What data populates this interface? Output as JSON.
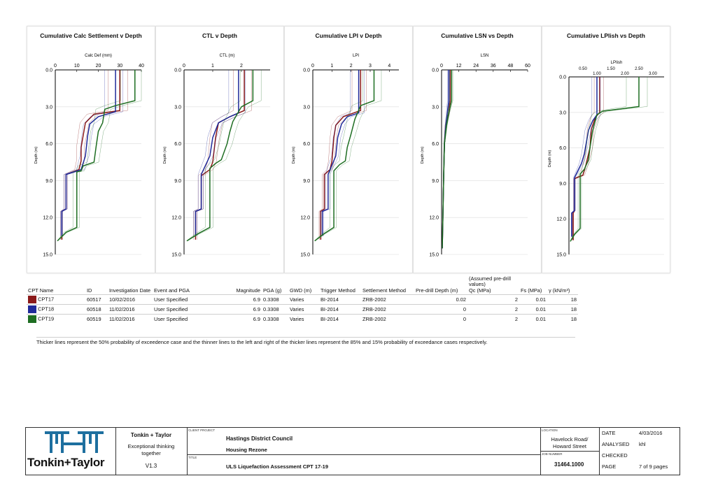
{
  "charts": [
    {
      "title": "Cumulative Calc Settlement v Depth",
      "xlabel": "Calc Def (mm)",
      "xticks": [
        "0",
        "10",
        "20",
        "30",
        "40"
      ],
      "yticks": [
        "0.0",
        "3.0",
        "6.0",
        "9.0",
        "12.0",
        "15.0"
      ],
      "ylabel": "Depth (m)"
    },
    {
      "title": "CTL v Depth",
      "xlabel": "CTL (m)",
      "xticks": [
        "0",
        "1",
        "2"
      ],
      "yticks": [
        "0.0",
        "3.0",
        "6.0",
        "9.0",
        "12.0",
        "15.0"
      ],
      "ylabel": "Depth (m)"
    },
    {
      "title": "Cumulative LPI v Depth",
      "xlabel": "LPI",
      "xticks": [
        "0",
        "1",
        "2",
        "3",
        "4"
      ],
      "yticks": [
        "0.0",
        "3.0",
        "6.0",
        "9.0",
        "12.0",
        "15.0"
      ],
      "ylabel": "Depth (m)"
    },
    {
      "title": "Cumulative LSN vs Depth",
      "xlabel": "LSN",
      "xticks": [
        "0",
        "12",
        "24",
        "36",
        "48",
        "60"
      ],
      "yticks": [
        "0.0",
        "3.0",
        "6.0",
        "9.0",
        "12.0",
        "15.0"
      ],
      "ylabel": "Depth (m)"
    },
    {
      "title": "Cumulative LPIish vs Depth",
      "xlabel": "LPIish",
      "xticks": [
        "0.50",
        "1.50",
        "2.50"
      ],
      "xticks2": [
        "1.00",
        "2.00",
        "3.00"
      ],
      "yticks": [
        "0.0",
        "3.0",
        "6.0",
        "9.0",
        "12.0",
        "15.0"
      ],
      "ylabel": "Depth (m)"
    }
  ],
  "chart_data": [
    {
      "type": "line",
      "title": "Cumulative Calc Settlement v Depth",
      "xlabel": "Calc Def (mm)",
      "ylabel": "Depth (m)",
      "xlim": [
        0,
        40
      ],
      "ylim": [
        0,
        15
      ],
      "series": [
        {
          "name": "CPT17",
          "color": "#8b1a1a",
          "points": [
            [
              30,
              0
            ],
            [
              30,
              3.3
            ],
            [
              18,
              3.6
            ],
            [
              14,
              4.3
            ],
            [
              13,
              5.3
            ],
            [
              12,
              6.3
            ],
            [
              12,
              7.4
            ],
            [
              11,
              8.1
            ],
            [
              5,
              8.5
            ],
            [
              5,
              11.3
            ],
            [
              3,
              11.5
            ],
            [
              3,
              13.8
            ]
          ]
        },
        {
          "name": "CPT18",
          "color": "#1f2a9a",
          "points": [
            [
              28,
              0
            ],
            [
              28,
              3.4
            ],
            [
              20,
              3.8
            ],
            [
              16,
              4.4
            ],
            [
              15,
              5.4
            ],
            [
              14,
              7.0
            ],
            [
              12,
              8.1
            ],
            [
              5,
              8.5
            ],
            [
              5,
              11.3
            ],
            [
              3,
              11.5
            ],
            [
              3,
              13.5
            ]
          ]
        },
        {
          "name": "CPT19",
          "color": "#1e6e22",
          "points": [
            [
              37,
              0
            ],
            [
              37,
              2.5
            ],
            [
              28,
              2.9
            ],
            [
              23,
              3.2
            ],
            [
              22,
              4.3
            ],
            [
              20,
              5.0
            ],
            [
              19,
              6.2
            ],
            [
              18,
              7.5
            ],
            [
              13,
              7.8
            ],
            [
              12,
              8.2
            ],
            [
              10,
              8.3
            ],
            [
              10,
              12.8
            ],
            [
              5,
              13.2
            ],
            [
              1,
              13.9
            ]
          ]
        }
      ]
    },
    {
      "type": "line",
      "title": "CTL v Depth",
      "xlabel": "CTL (m)",
      "ylabel": "Depth (m)",
      "xlim": [
        0,
        3
      ],
      "ylim": [
        0,
        15
      ],
      "series": [
        {
          "name": "CPT17",
          "color": "#8b1a1a",
          "points": [
            [
              2.1,
              0
            ],
            [
              2.1,
              3.3
            ],
            [
              1.6,
              3.8
            ],
            [
              1.2,
              4.3
            ],
            [
              1.1,
              5.5
            ],
            [
              1.0,
              7.5
            ],
            [
              0.9,
              8.1
            ],
            [
              0.6,
              8.6
            ],
            [
              0.6,
              11.3
            ],
            [
              0.4,
              11.5
            ],
            [
              0.4,
              13.8
            ]
          ]
        },
        {
          "name": "CPT18",
          "color": "#1f2a9a",
          "points": [
            [
              1.9,
              0
            ],
            [
              1.9,
              3.5
            ],
            [
              1.6,
              3.8
            ],
            [
              1.2,
              4.3
            ],
            [
              1.0,
              5.5
            ],
            [
              0.9,
              7.0
            ],
            [
              0.6,
              8.5
            ],
            [
              0.6,
              11.3
            ],
            [
              0.4,
              11.5
            ],
            [
              0.4,
              13.5
            ]
          ]
        },
        {
          "name": "CPT19",
          "color": "#1e6e22",
          "points": [
            [
              2.4,
              0
            ],
            [
              2.4,
              2.5
            ],
            [
              2.0,
              3.0
            ],
            [
              1.7,
              4.2
            ],
            [
              1.6,
              5.0
            ],
            [
              1.5,
              6.0
            ],
            [
              1.3,
              7.3
            ],
            [
              1.1,
              7.6
            ],
            [
              0.9,
              8.0
            ],
            [
              0.9,
              12.8
            ],
            [
              0.5,
              13.3
            ],
            [
              0.1,
              13.9
            ]
          ]
        }
      ]
    },
    {
      "type": "line",
      "title": "Cumulative LPI v Depth",
      "xlabel": "LPI",
      "ylabel": "Depth (m)",
      "xlim": [
        0,
        4.5
      ],
      "ylim": [
        0,
        15
      ],
      "series": [
        {
          "name": "CPT17",
          "color": "#8b1a1a",
          "points": [
            [
              2.5,
              0
            ],
            [
              2.5,
              3.3
            ],
            [
              1.6,
              3.8
            ],
            [
              1.2,
              4.5
            ],
            [
              1.1,
              5.5
            ],
            [
              1.0,
              7.4
            ],
            [
              0.9,
              8.1
            ],
            [
              0.6,
              8.5
            ],
            [
              0.6,
              11.3
            ],
            [
              0.4,
              11.5
            ],
            [
              0.4,
              13.8
            ]
          ]
        },
        {
          "name": "CPT18",
          "color": "#1f2a9a",
          "points": [
            [
              2.4,
              0
            ],
            [
              2.4,
              3.5
            ],
            [
              1.8,
              3.8
            ],
            [
              1.5,
              4.4
            ],
            [
              1.3,
              5.5
            ],
            [
              1.2,
              7.0
            ],
            [
              0.8,
              8.5
            ],
            [
              0.8,
              11.3
            ],
            [
              0.5,
              11.5
            ],
            [
              0.5,
              13.5
            ]
          ]
        },
        {
          "name": "CPT19",
          "color": "#1e6e22",
          "points": [
            [
              3.2,
              0
            ],
            [
              3.2,
              2.5
            ],
            [
              2.5,
              2.9
            ],
            [
              2.2,
              4.0
            ],
            [
              2.0,
              5.2
            ],
            [
              1.8,
              6.3
            ],
            [
              1.7,
              7.4
            ],
            [
              1.4,
              7.7
            ],
            [
              1.1,
              8.2
            ],
            [
              1.1,
              12.8
            ],
            [
              0.6,
              13.3
            ],
            [
              0.1,
              13.9
            ]
          ]
        }
      ]
    },
    {
      "type": "line",
      "title": "Cumulative LSN vs Depth",
      "xlabel": "LSN",
      "ylabel": "Depth (m)",
      "xlim": [
        0,
        60
      ],
      "ylim": [
        0,
        15
      ],
      "series": [
        {
          "name": "CPT17",
          "color": "#8b1a1a",
          "points": [
            [
              6,
              0
            ],
            [
              6,
              2.5
            ],
            [
              5,
              3.5
            ],
            [
              3,
              4.5
            ],
            [
              2,
              6.0
            ],
            [
              1.5,
              8.5
            ],
            [
              1,
              11.5
            ],
            [
              0.5,
              14.5
            ]
          ]
        },
        {
          "name": "CPT18",
          "color": "#1f2a9a",
          "points": [
            [
              5,
              0
            ],
            [
              5,
              2.5
            ],
            [
              4,
              3.5
            ],
            [
              3,
              4.5
            ],
            [
              2,
              6.0
            ],
            [
              1.5,
              8.5
            ],
            [
              1,
              11.5
            ],
            [
              0.5,
              14.5
            ]
          ]
        },
        {
          "name": "CPT19",
          "color": "#1e6e22",
          "points": [
            [
              7,
              0
            ],
            [
              7,
              2.5
            ],
            [
              5,
              3.5
            ],
            [
              3.5,
              4.5
            ],
            [
              2,
              6.0
            ],
            [
              1.5,
              8.5
            ],
            [
              1,
              11.5
            ],
            [
              0.5,
              14.5
            ]
          ]
        }
      ]
    },
    {
      "type": "line",
      "title": "Cumulative LPIish vs Depth",
      "xlabel": "LPIish",
      "ylabel": "Depth (m)",
      "xlim": [
        0,
        3.4
      ],
      "ylim": [
        0,
        15
      ],
      "series": [
        {
          "name": "CPT17",
          "color": "#8b1a1a",
          "points": [
            [
              1.1,
              0
            ],
            [
              1.1,
              3.0
            ],
            [
              0.95,
              3.4
            ],
            [
              0.8,
              4.4
            ],
            [
              0.75,
              6.0
            ],
            [
              0.6,
              7.5
            ],
            [
              0.5,
              8.3
            ],
            [
              0.2,
              8.6
            ],
            [
              0.2,
              11.3
            ],
            [
              0.15,
              11.5
            ],
            [
              0.15,
              13.8
            ]
          ]
        },
        {
          "name": "CPT18",
          "color": "#1f2a9a",
          "points": [
            [
              1.0,
              0
            ],
            [
              1.0,
              3.2
            ],
            [
              0.85,
              3.7
            ],
            [
              0.7,
              4.5
            ],
            [
              0.55,
              6.5
            ],
            [
              0.45,
              7.3
            ],
            [
              0.2,
              8.5
            ],
            [
              0.2,
              11.3
            ],
            [
              0.1,
              11.5
            ],
            [
              0.1,
              13.5
            ]
          ]
        },
        {
          "name": "CPT19",
          "color": "#1e6e22",
          "points": [
            [
              2.5,
              0
            ],
            [
              2.5,
              2.5
            ],
            [
              1.2,
              2.9
            ],
            [
              1.0,
              3.2
            ],
            [
              0.85,
              4.5
            ],
            [
              0.75,
              6.0
            ],
            [
              0.7,
              7.0
            ],
            [
              0.55,
              7.8
            ],
            [
              0.4,
              8.2
            ],
            [
              0.4,
              12.8
            ],
            [
              0.2,
              13.3
            ],
            [
              0.05,
              13.9
            ]
          ]
        }
      ]
    }
  ],
  "table": {
    "headers": [
      "CPT Name",
      "ID",
      "Investigation Date",
      "Event and PGA",
      "Magnitude",
      "PGA (g)",
      "GWD (m)",
      "Trigger Method",
      "Settlement Method",
      "Pre-drill Depth (m)",
      "(Assumed pre-drill values) Qc (MPa)",
      "Fs (MPa)",
      "γ (kN/m³)"
    ],
    "h_qc_top": "(Assumed pre-drill values)",
    "h_qc": "Qc (MPa)",
    "rows": [
      {
        "color": "#8b1a1a",
        "name": "CPT17",
        "id": "60517",
        "date": "10/02/2016",
        "event": "User Specified",
        "mag": "6.9",
        "pga": "0.3308",
        "gwd": "Varies",
        "trigger": "BI-2014",
        "settle": "ZRB-2002",
        "predrill": "0.02",
        "qc": "2",
        "fs": "0.01",
        "gamma": "18"
      },
      {
        "color": "#1f2a9a",
        "name": "CPT18",
        "id": "60518",
        "date": "11/02/2016",
        "event": "User Specified",
        "mag": "6.9",
        "pga": "0.3308",
        "gwd": "Varies",
        "trigger": "BI-2014",
        "settle": "ZRB-2002",
        "predrill": "0",
        "qc": "2",
        "fs": "0.01",
        "gamma": "18"
      },
      {
        "color": "#1e6e22",
        "name": "CPT19",
        "id": "60519",
        "date": "11/02/2016",
        "event": "User Specified",
        "mag": "6.9",
        "pga": "0.3308",
        "gwd": "Varies",
        "trigger": "BI-2014",
        "settle": "ZRB-2002",
        "predrill": "0",
        "qc": "2",
        "fs": "0.01",
        "gamma": "18"
      }
    ],
    "note": "Thicker lines represent the 50% probability of exceedence case and the thinner lines to the left and right of the thicker lines represent the 85% and 15% probability of exceedance cases respectively."
  },
  "titleblock": {
    "company": "Tonkin + Taylor",
    "tagline": "Exceptional thinking together",
    "version": "V1.3",
    "logo_text": "Tonkin+Taylor",
    "lbl_client": "CLIENT  PROJECT",
    "client": "Hastings District Council",
    "project": "Housing Rezone",
    "lbl_title": "TITLE",
    "title": "ULS Liquefaction Assessment CPT 17-19",
    "lbl_location": "LOCATION",
    "location": "Havelock Road/ Howard Street",
    "lbl_job": "JOB NUMBER",
    "job": "31464.1000",
    "lbl_date": "DATE",
    "date": "4/03/2016",
    "lbl_analysed": "ANALYSED",
    "analysed": "khl",
    "lbl_checked": "CHECKED",
    "checked": "",
    "lbl_page": "PAGE",
    "page": "7 of 9 pages"
  }
}
